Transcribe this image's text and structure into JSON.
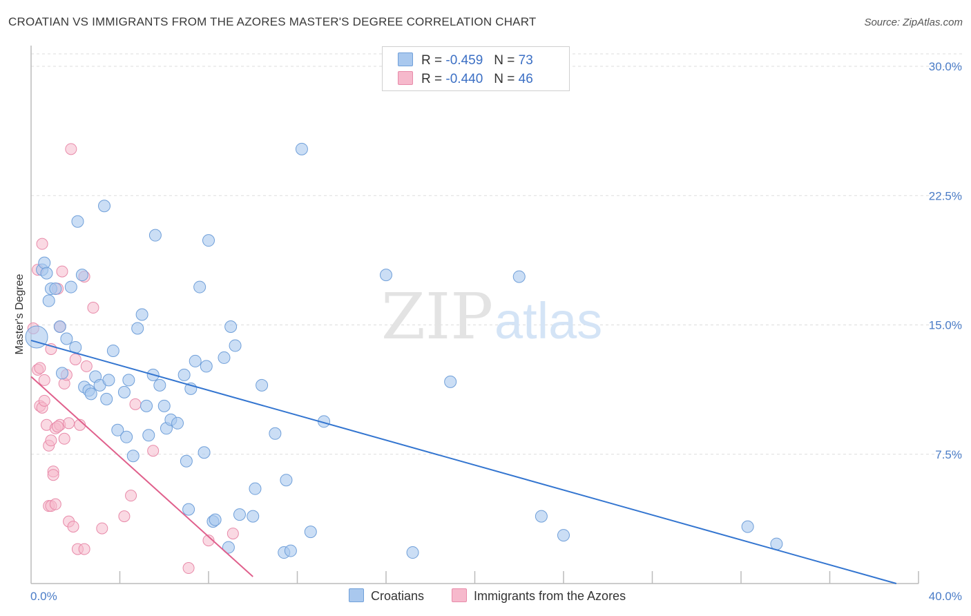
{
  "title": "CROATIAN VS IMMIGRANTS FROM THE AZORES MASTER'S DEGREE CORRELATION CHART",
  "source": "Source: ZipAtlas.com",
  "watermark": {
    "zip": "ZIP",
    "atlas": "atlas"
  },
  "legend": {
    "croatians": {
      "r_label": "R =",
      "r_value": "-0.459",
      "n_label": "N =",
      "n_value": "73"
    },
    "azores": {
      "r_label": "R =",
      "r_value": "-0.440",
      "n_label": "N =",
      "n_value": "46"
    }
  },
  "bottom_legend": {
    "croatians": "Croatians",
    "azores": "Immigrants from the Azores"
  },
  "colors": {
    "blue_fill": "#a9c8ee",
    "blue_stroke": "#6f9fd9",
    "blue_line": "#3375d0",
    "pink_fill": "#f6b9cc",
    "pink_stroke": "#e88aa9",
    "pink_line": "#e0608c",
    "grid": "#dddddd",
    "axis_text": "#4a7cc7"
  },
  "chart_data": {
    "type": "scatter",
    "title": "CROATIAN VS IMMIGRANTS FROM THE AZORES MASTER'S DEGREE CORRELATION CHART",
    "xlabel": "",
    "ylabel": "Master's Degree",
    "xlim": [
      0,
      40
    ],
    "ylim": [
      0,
      30
    ],
    "x_tick_labels": [
      "0.0%",
      "40.0%"
    ],
    "y_ticks": [
      7.5,
      15.0,
      22.5,
      30.0
    ],
    "y_tick_labels": [
      "7.5%",
      "15.0%",
      "22.5%",
      "30.0%"
    ],
    "series": [
      {
        "name": "Croatians",
        "r": -0.459,
        "n": 73,
        "trend": {
          "x": [
            0,
            39.0
          ],
          "y": [
            14.1,
            0.0
          ]
        },
        "points": [
          [
            0.25,
            14.3
          ],
          [
            0.5,
            18.2
          ],
          [
            0.6,
            18.6
          ],
          [
            0.7,
            18.0
          ],
          [
            0.8,
            16.4
          ],
          [
            0.9,
            17.1
          ],
          [
            1.1,
            17.1
          ],
          [
            1.3,
            14.9
          ],
          [
            1.6,
            14.2
          ],
          [
            2.0,
            13.7
          ],
          [
            2.1,
            21.0
          ],
          [
            2.3,
            17.9
          ],
          [
            1.8,
            17.2
          ],
          [
            1.4,
            12.2
          ],
          [
            2.4,
            11.4
          ],
          [
            2.6,
            11.2
          ],
          [
            2.7,
            11.0
          ],
          [
            2.9,
            12.0
          ],
          [
            3.1,
            11.5
          ],
          [
            3.4,
            10.7
          ],
          [
            3.5,
            11.8
          ],
          [
            3.7,
            13.5
          ],
          [
            3.9,
            8.9
          ],
          [
            4.2,
            11.1
          ],
          [
            4.3,
            8.5
          ],
          [
            4.4,
            11.8
          ],
          [
            4.6,
            7.4
          ],
          [
            4.8,
            14.8
          ],
          [
            5.0,
            15.6
          ],
          [
            5.2,
            10.3
          ],
          [
            5.3,
            8.6
          ],
          [
            5.5,
            12.1
          ],
          [
            5.6,
            20.2
          ],
          [
            5.8,
            11.5
          ],
          [
            6.0,
            10.3
          ],
          [
            6.1,
            9.0
          ],
          [
            6.3,
            9.5
          ],
          [
            6.6,
            9.3
          ],
          [
            6.9,
            12.1
          ],
          [
            7.0,
            7.1
          ],
          [
            7.1,
            4.3
          ],
          [
            7.2,
            11.3
          ],
          [
            7.4,
            12.9
          ],
          [
            7.6,
            17.2
          ],
          [
            7.8,
            7.6
          ],
          [
            7.9,
            12.6
          ],
          [
            8.0,
            19.9
          ],
          [
            8.2,
            3.6
          ],
          [
            8.3,
            3.7
          ],
          [
            8.7,
            13.1
          ],
          [
            8.9,
            2.1
          ],
          [
            9.0,
            14.9
          ],
          [
            9.2,
            13.8
          ],
          [
            9.4,
            4.0
          ],
          [
            10.0,
            3.9
          ],
          [
            10.1,
            5.5
          ],
          [
            10.4,
            11.5
          ],
          [
            11.0,
            8.7
          ],
          [
            11.4,
            1.8
          ],
          [
            11.5,
            6.0
          ],
          [
            11.7,
            1.9
          ],
          [
            12.6,
            3.0
          ],
          [
            12.2,
            25.2
          ],
          [
            13.2,
            9.4
          ],
          [
            16.0,
            17.9
          ],
          [
            17.2,
            1.8
          ],
          [
            18.9,
            11.7
          ],
          [
            22.0,
            17.8
          ],
          [
            23.0,
            3.9
          ],
          [
            24.0,
            2.8
          ],
          [
            32.3,
            3.3
          ],
          [
            33.6,
            2.3
          ],
          [
            3.3,
            21.9
          ]
        ]
      },
      {
        "name": "Immigrants from the Azores",
        "r": -0.44,
        "n": 46,
        "trend": {
          "x": [
            0,
            10.0
          ],
          "y": [
            12.0,
            0.4
          ]
        },
        "points": [
          [
            0.1,
            14.8
          ],
          [
            0.3,
            18.2
          ],
          [
            0.3,
            12.4
          ],
          [
            0.4,
            12.5
          ],
          [
            0.4,
            10.3
          ],
          [
            0.5,
            10.2
          ],
          [
            0.5,
            19.7
          ],
          [
            0.6,
            10.6
          ],
          [
            0.6,
            11.8
          ],
          [
            0.7,
            9.2
          ],
          [
            0.8,
            4.5
          ],
          [
            0.8,
            8.0
          ],
          [
            0.9,
            8.3
          ],
          [
            0.9,
            13.6
          ],
          [
            0.9,
            4.5
          ],
          [
            1.0,
            6.5
          ],
          [
            1.0,
            6.3
          ],
          [
            1.1,
            9.0
          ],
          [
            1.1,
            4.6
          ],
          [
            1.2,
            17.1
          ],
          [
            1.3,
            14.9
          ],
          [
            1.3,
            9.2
          ],
          [
            1.4,
            18.1
          ],
          [
            1.5,
            8.4
          ],
          [
            1.5,
            11.6
          ],
          [
            1.6,
            12.1
          ],
          [
            1.7,
            3.6
          ],
          [
            1.7,
            9.3
          ],
          [
            1.8,
            25.2
          ],
          [
            1.9,
            3.3
          ],
          [
            2.0,
            13.0
          ],
          [
            2.1,
            2.0
          ],
          [
            2.2,
            9.2
          ],
          [
            2.4,
            2.0
          ],
          [
            2.4,
            17.8
          ],
          [
            2.5,
            12.6
          ],
          [
            2.8,
            16.0
          ],
          [
            3.2,
            3.2
          ],
          [
            4.2,
            3.9
          ],
          [
            4.5,
            5.1
          ],
          [
            4.7,
            10.4
          ],
          [
            5.5,
            7.7
          ],
          [
            7.1,
            0.9
          ],
          [
            8.0,
            2.5
          ],
          [
            9.1,
            2.9
          ],
          [
            1.2,
            9.1
          ]
        ]
      }
    ]
  }
}
